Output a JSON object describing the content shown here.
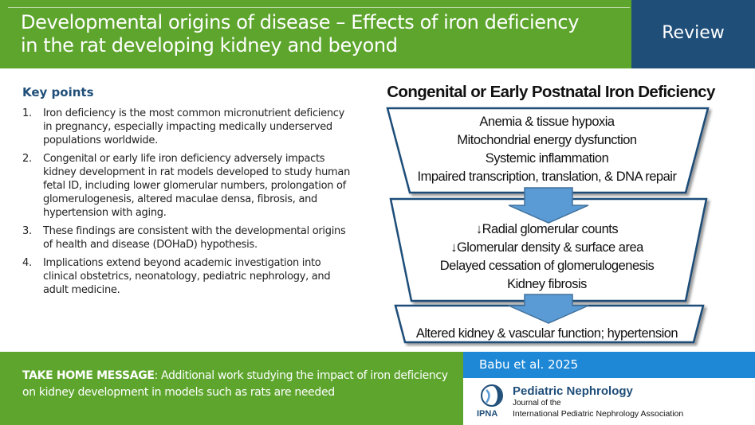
{
  "header": {
    "title_line1": "Developmental origins of disease – Effects of iron deficiency",
    "title_line2": "in the rat developing kidney and beyond",
    "badge": "Review"
  },
  "key_points": {
    "title": "Key points",
    "items": [
      {
        "num": "1.",
        "text": "Iron deficiency is the most common micronutrient deficiency in pregnancy, especially impacting medically underserved populations worldwide."
      },
      {
        "num": "2.",
        "text": "Congenital or early life iron deficiency adversely impacts kidney development in rat models developed to study human fetal ID, including lower glomerular numbers, prolongation of glomerulogenesis, altered maculae densa, fibrosis, and hypertension with aging."
      },
      {
        "num": "3.",
        "text": "These findings are consistent with the developmental origins of health and disease (DOHaD) hypothesis."
      },
      {
        "num": "4.",
        "text": "Implications extend beyond academic investigation into clinical obstetrics, neonatology, pediatric nephrology, and adult medicine."
      }
    ]
  },
  "diagram": {
    "title": "Congenital or Early Postnatal Iron Deficiency",
    "box1": [
      "Anemia & tissue hypoxia",
      "Mitochondrial energy dysfunction",
      "Systemic inflammation",
      "Impaired transcription, translation, & DNA repair"
    ],
    "box2": [
      "↓Radial glomerular counts",
      "↓Glomerular density & surface area",
      "Delayed cessation of glomerulogenesis",
      "Kidney fibrosis"
    ],
    "box3": [
      "Altered kidney & vascular function; hypertension"
    ]
  },
  "take_home": {
    "label": "TAKE HOME MESSAGE",
    "text": ": Additional work studying the impact of iron deficiency on kidney development in models such as rats are needed"
  },
  "citation": {
    "author": "Babu et al. 2025",
    "journal": "Pediatric Nephrology",
    "journal_sub1": "Journal of the",
    "journal_sub2": "International Pediatric Nephrology Association",
    "logo_text": "IPNA"
  },
  "colors": {
    "green": "#5da52d",
    "navy": "#1f4e79",
    "blue": "#1f88d6",
    "arrow": "#5b9bd5"
  }
}
